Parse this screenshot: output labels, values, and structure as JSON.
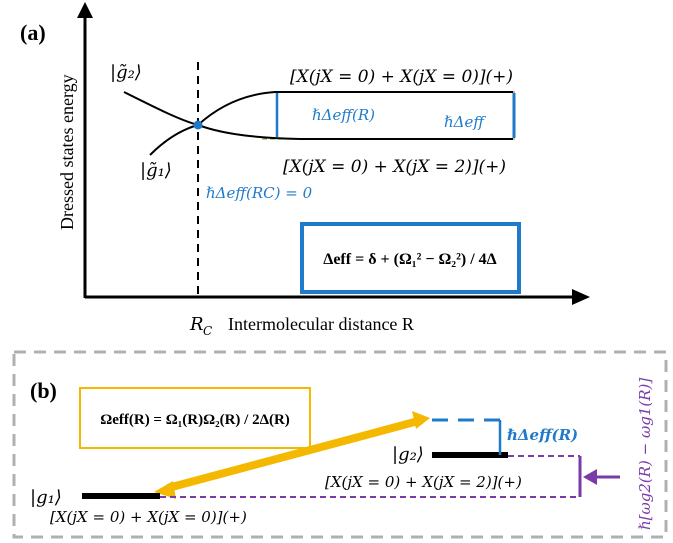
{
  "panel_a": {
    "label": "(a)",
    "y_axis_label": "Dressed states energy",
    "x_axis_label": "Intermolecular distance R",
    "rc_label": "R",
    "rc_sub": "C",
    "state_g2": "|g̃₂⟩",
    "state_g1": "|g̃₁⟩",
    "upper_asymptote": "[X(jX = 0) + X(jX = 0)](+)",
    "lower_asymptote": "[X(jX = 0) + X(jX = 2)](+)",
    "delta_R_label": "ℏΔeff(R)",
    "delta_label": "ℏΔeff",
    "delta_rc_label": "ℏΔeff(RC) = 0",
    "formula_box": "Δeff = δ + (Ω₁² − Ω₂²) / 4Δ",
    "colors": {
      "axis": "#000000",
      "blue": "#1f7ac9",
      "red_dash": "#e03030",
      "green_dash": "#7a9a3a"
    }
  },
  "panel_b": {
    "label": "(b)",
    "omega_box": "Ωeff(R) = Ω₁(R)Ω₂(R) / 2Δ(R)",
    "state_g1": "|g₁⟩",
    "state_g2": "|g₂⟩",
    "g1_config": "[X(jX = 0) + X(jX = 0)](+)",
    "g2_config": "[X(jX = 0) + X(jX = 2)](+)",
    "delta_label": "ℏΔeff(R)",
    "vertical_label": "ℏ[ωg2(R) − ωg1(R)]",
    "colors": {
      "frame": "#b0b0b0",
      "gold": "#f5b800",
      "purple": "#7a3aa8",
      "blue": "#1f7ac9"
    }
  }
}
